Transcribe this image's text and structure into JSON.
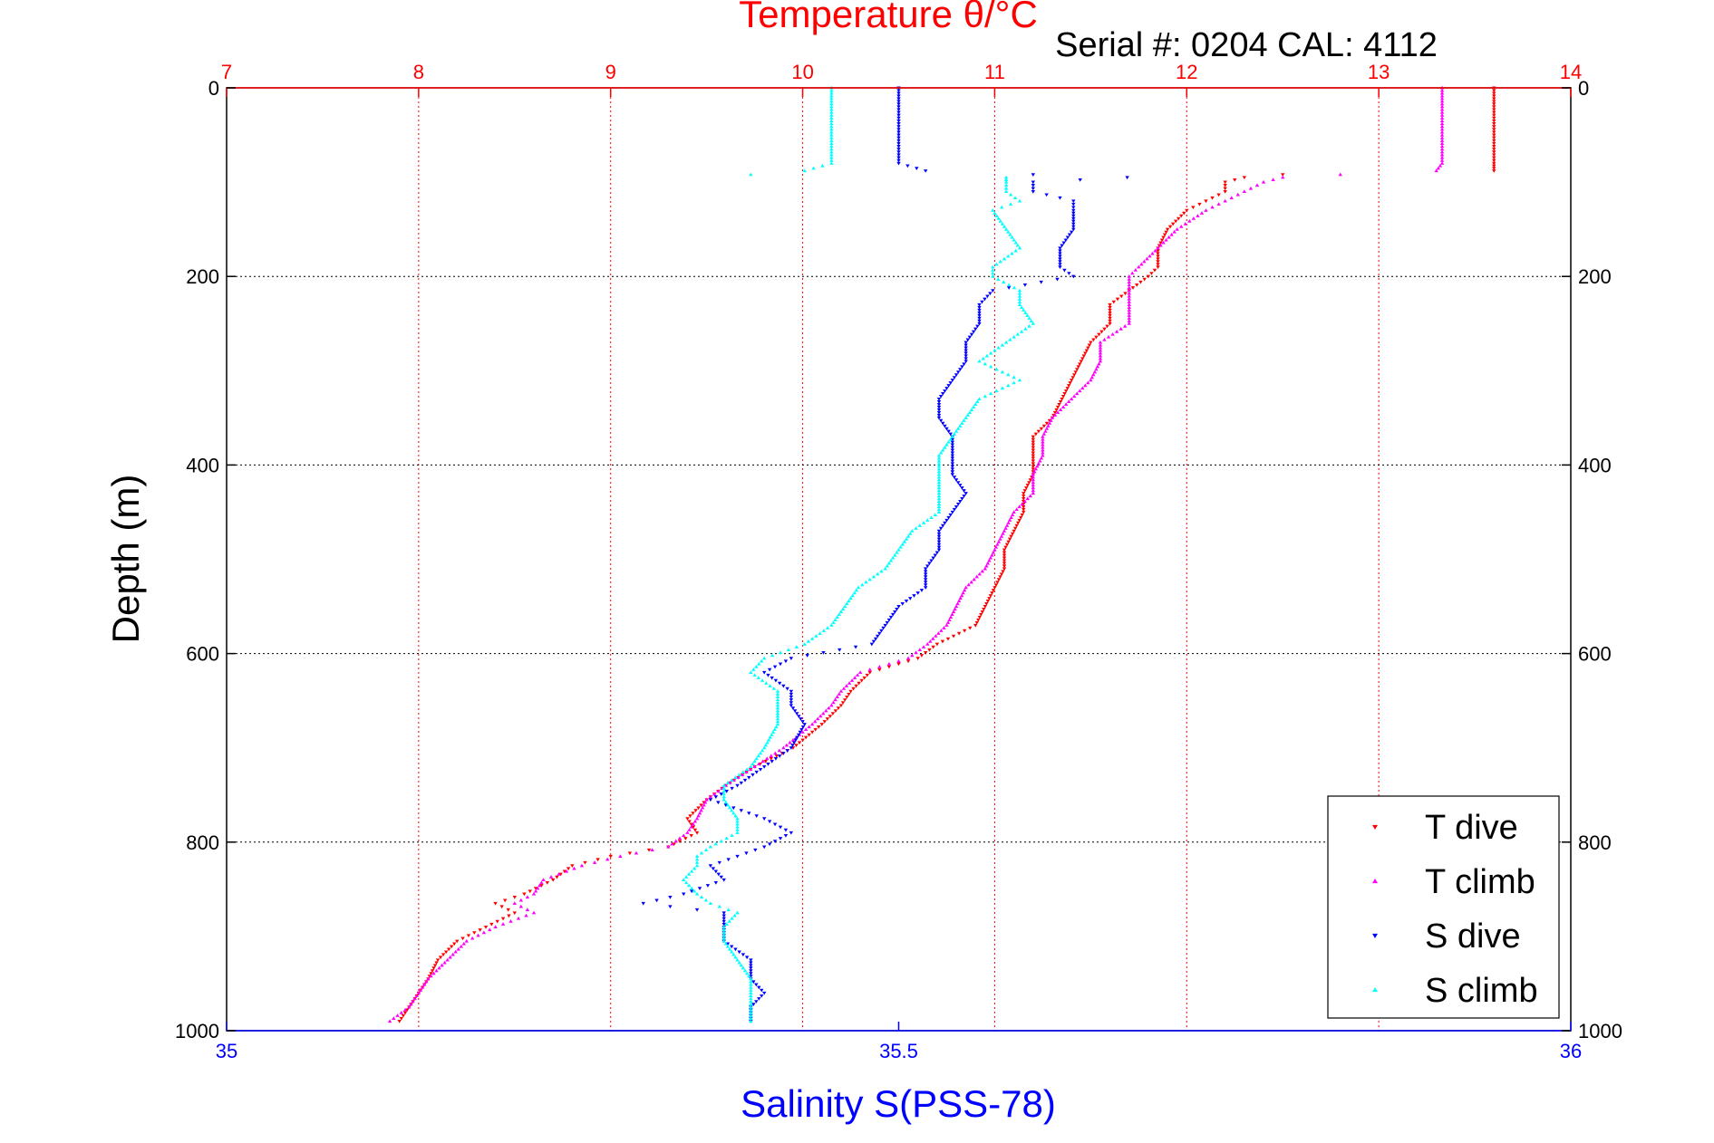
{
  "chart_data": {
    "type": "scatter",
    "title": "Temperature θ/°C",
    "subtitle": "Serial #: 0204  CAL: 4112",
    "xlabel": "Salinity S(PSS-78)",
    "ylabel": "Depth (m)",
    "x_top": {
      "label": "Temperature θ/°C",
      "lim": [
        7,
        14
      ],
      "ticks": [
        "7",
        "8",
        "9",
        "10",
        "11",
        "12",
        "13",
        "14"
      ],
      "color": "#ff0000"
    },
    "x_bottom": {
      "label": "Salinity S(PSS-78)",
      "lim": [
        35,
        36
      ],
      "ticks": [
        "35",
        "35.5",
        "36"
      ],
      "color": "#0000ff"
    },
    "y": {
      "lim": [
        0,
        1000
      ],
      "reversed": true,
      "ticks": [
        "0",
        "200",
        "400",
        "600",
        "800",
        "1000"
      ]
    },
    "grid": true,
    "legend_position": "bottom-right",
    "series": [
      {
        "name": "T dive",
        "axis": "temperature",
        "color": "#ff0000",
        "marker": "triangle-down",
        "points": [
          [
            13.6,
            0
          ],
          [
            13.6,
            20
          ],
          [
            13.6,
            50
          ],
          [
            13.6,
            80
          ],
          [
            13.6,
            88
          ],
          [
            12.5,
            92
          ],
          [
            12.3,
            95
          ],
          [
            12.2,
            100
          ],
          [
            12.2,
            110
          ],
          [
            12.1,
            120
          ],
          [
            12.0,
            130
          ],
          [
            11.9,
            150
          ],
          [
            11.85,
            170
          ],
          [
            11.85,
            190
          ],
          [
            11.8,
            200
          ],
          [
            11.7,
            215
          ],
          [
            11.6,
            230
          ],
          [
            11.6,
            250
          ],
          [
            11.5,
            270
          ],
          [
            11.45,
            290
          ],
          [
            11.4,
            310
          ],
          [
            11.35,
            330
          ],
          [
            11.3,
            350
          ],
          [
            11.2,
            370
          ],
          [
            11.2,
            390
          ],
          [
            11.2,
            410
          ],
          [
            11.15,
            430
          ],
          [
            11.15,
            450
          ],
          [
            11.1,
            470
          ],
          [
            11.05,
            490
          ],
          [
            11.05,
            510
          ],
          [
            11.0,
            530
          ],
          [
            10.95,
            550
          ],
          [
            10.9,
            570
          ],
          [
            10.7,
            590
          ],
          [
            10.6,
            605
          ],
          [
            10.35,
            620
          ],
          [
            10.25,
            640
          ],
          [
            10.2,
            655
          ],
          [
            10.1,
            675
          ],
          [
            9.95,
            700
          ],
          [
            9.75,
            720
          ],
          [
            9.6,
            740
          ],
          [
            9.5,
            755
          ],
          [
            9.4,
            775
          ],
          [
            9.45,
            790
          ],
          [
            9.3,
            805
          ],
          [
            9.0,
            815
          ],
          [
            8.8,
            825
          ],
          [
            8.7,
            840
          ],
          [
            8.55,
            855
          ],
          [
            8.4,
            865
          ],
          [
            8.5,
            875
          ],
          [
            8.35,
            890
          ],
          [
            8.2,
            905
          ],
          [
            8.1,
            925
          ],
          [
            8.05,
            945
          ],
          [
            8.0,
            960
          ],
          [
            7.95,
            975
          ],
          [
            7.9,
            990
          ]
        ]
      },
      {
        "name": "T climb",
        "axis": "temperature",
        "color": "#ff00ff",
        "marker": "triangle-up",
        "points": [
          [
            13.33,
            0
          ],
          [
            13.33,
            20
          ],
          [
            13.33,
            50
          ],
          [
            13.33,
            80
          ],
          [
            13.3,
            88
          ],
          [
            12.8,
            92
          ],
          [
            12.5,
            95
          ],
          [
            12.4,
            100
          ],
          [
            12.3,
            110
          ],
          [
            12.2,
            120
          ],
          [
            12.1,
            130
          ],
          [
            11.95,
            150
          ],
          [
            11.85,
            170
          ],
          [
            11.75,
            190
          ],
          [
            11.7,
            200
          ],
          [
            11.7,
            215
          ],
          [
            11.7,
            230
          ],
          [
            11.7,
            250
          ],
          [
            11.55,
            270
          ],
          [
            11.55,
            290
          ],
          [
            11.5,
            310
          ],
          [
            11.4,
            330
          ],
          [
            11.3,
            350
          ],
          [
            11.25,
            370
          ],
          [
            11.25,
            390
          ],
          [
            11.2,
            410
          ],
          [
            11.2,
            430
          ],
          [
            11.1,
            450
          ],
          [
            11.05,
            470
          ],
          [
            11.0,
            490
          ],
          [
            10.95,
            510
          ],
          [
            10.85,
            530
          ],
          [
            10.8,
            550
          ],
          [
            10.75,
            570
          ],
          [
            10.65,
            590
          ],
          [
            10.55,
            605
          ],
          [
            10.3,
            620
          ],
          [
            10.2,
            640
          ],
          [
            10.15,
            655
          ],
          [
            10.05,
            675
          ],
          [
            9.9,
            700
          ],
          [
            9.75,
            720
          ],
          [
            9.6,
            740
          ],
          [
            9.5,
            755
          ],
          [
            9.45,
            775
          ],
          [
            9.4,
            790
          ],
          [
            9.3,
            805
          ],
          [
            9.05,
            815
          ],
          [
            8.85,
            825
          ],
          [
            8.65,
            840
          ],
          [
            8.6,
            855
          ],
          [
            8.5,
            865
          ],
          [
            8.6,
            875
          ],
          [
            8.4,
            890
          ],
          [
            8.25,
            905
          ],
          [
            8.15,
            925
          ],
          [
            8.05,
            945
          ],
          [
            8.0,
            960
          ],
          [
            7.95,
            975
          ],
          [
            7.85,
            990
          ]
        ]
      },
      {
        "name": "S dive",
        "axis": "salinity",
        "color": "#0000ff",
        "marker": "triangle-down",
        "points": [
          [
            35.5,
            0
          ],
          [
            35.5,
            20
          ],
          [
            35.5,
            50
          ],
          [
            35.5,
            80
          ],
          [
            35.52,
            88
          ],
          [
            35.6,
            92
          ],
          [
            35.67,
            95
          ],
          [
            35.6,
            100
          ],
          [
            35.6,
            110
          ],
          [
            35.63,
            120
          ],
          [
            35.63,
            130
          ],
          [
            35.63,
            150
          ],
          [
            35.62,
            170
          ],
          [
            35.62,
            190
          ],
          [
            35.63,
            200
          ],
          [
            35.57,
            215
          ],
          [
            35.56,
            230
          ],
          [
            35.56,
            250
          ],
          [
            35.55,
            270
          ],
          [
            35.55,
            290
          ],
          [
            35.54,
            310
          ],
          [
            35.53,
            330
          ],
          [
            35.53,
            350
          ],
          [
            35.54,
            370
          ],
          [
            35.54,
            390
          ],
          [
            35.54,
            410
          ],
          [
            35.55,
            430
          ],
          [
            35.54,
            450
          ],
          [
            35.53,
            470
          ],
          [
            35.53,
            490
          ],
          [
            35.52,
            510
          ],
          [
            35.52,
            530
          ],
          [
            35.5,
            550
          ],
          [
            35.49,
            570
          ],
          [
            35.48,
            590
          ],
          [
            35.42,
            605
          ],
          [
            35.4,
            620
          ],
          [
            35.42,
            640
          ],
          [
            35.42,
            655
          ],
          [
            35.43,
            675
          ],
          [
            35.42,
            700
          ],
          [
            35.4,
            720
          ],
          [
            35.38,
            740
          ],
          [
            35.36,
            755
          ],
          [
            35.4,
            775
          ],
          [
            35.42,
            790
          ],
          [
            35.4,
            805
          ],
          [
            35.38,
            815
          ],
          [
            35.36,
            825
          ],
          [
            35.37,
            840
          ],
          [
            35.34,
            855
          ],
          [
            35.31,
            865
          ],
          [
            35.37,
            875
          ],
          [
            35.37,
            890
          ],
          [
            35.37,
            905
          ],
          [
            35.39,
            925
          ],
          [
            35.39,
            945
          ],
          [
            35.4,
            960
          ],
          [
            35.39,
            975
          ],
          [
            35.39,
            990
          ]
        ]
      },
      {
        "name": "S climb",
        "axis": "salinity",
        "color": "#00ffff",
        "marker": "triangle-up",
        "points": [
          [
            35.45,
            0
          ],
          [
            35.45,
            20
          ],
          [
            35.45,
            50
          ],
          [
            35.45,
            80
          ],
          [
            35.43,
            88
          ],
          [
            35.39,
            92
          ],
          [
            35.58,
            95
          ],
          [
            35.58,
            100
          ],
          [
            35.58,
            110
          ],
          [
            35.59,
            120
          ],
          [
            35.57,
            130
          ],
          [
            35.58,
            150
          ],
          [
            35.59,
            170
          ],
          [
            35.57,
            190
          ],
          [
            35.57,
            200
          ],
          [
            35.59,
            215
          ],
          [
            35.59,
            230
          ],
          [
            35.6,
            250
          ],
          [
            35.58,
            270
          ],
          [
            35.56,
            290
          ],
          [
            35.59,
            310
          ],
          [
            35.56,
            330
          ],
          [
            35.55,
            350
          ],
          [
            35.54,
            370
          ],
          [
            35.53,
            390
          ],
          [
            35.53,
            410
          ],
          [
            35.53,
            430
          ],
          [
            35.53,
            450
          ],
          [
            35.51,
            470
          ],
          [
            35.5,
            490
          ],
          [
            35.49,
            510
          ],
          [
            35.47,
            530
          ],
          [
            35.46,
            550
          ],
          [
            35.45,
            570
          ],
          [
            35.43,
            590
          ],
          [
            35.4,
            605
          ],
          [
            35.39,
            620
          ],
          [
            35.41,
            640
          ],
          [
            35.41,
            655
          ],
          [
            35.41,
            675
          ],
          [
            35.4,
            700
          ],
          [
            35.39,
            720
          ],
          [
            35.37,
            740
          ],
          [
            35.37,
            755
          ],
          [
            35.38,
            775
          ],
          [
            35.38,
            790
          ],
          [
            35.36,
            805
          ],
          [
            35.35,
            815
          ],
          [
            35.35,
            825
          ],
          [
            35.34,
            840
          ],
          [
            35.35,
            855
          ],
          [
            35.36,
            865
          ],
          [
            35.38,
            875
          ],
          [
            35.37,
            890
          ],
          [
            35.37,
            905
          ],
          [
            35.38,
            925
          ],
          [
            35.39,
            945
          ],
          [
            35.39,
            960
          ],
          [
            35.39,
            975
          ],
          [
            35.39,
            990
          ]
        ]
      }
    ]
  },
  "legend": {
    "items": [
      {
        "label": "T dive",
        "color": "#ff0000",
        "marker": "triangle-down"
      },
      {
        "label": "T climb",
        "color": "#ff00ff",
        "marker": "triangle-up"
      },
      {
        "label": "S dive",
        "color": "#0000ff",
        "marker": "triangle-down"
      },
      {
        "label": "S climb",
        "color": "#00ffff",
        "marker": "triangle-up"
      }
    ]
  }
}
